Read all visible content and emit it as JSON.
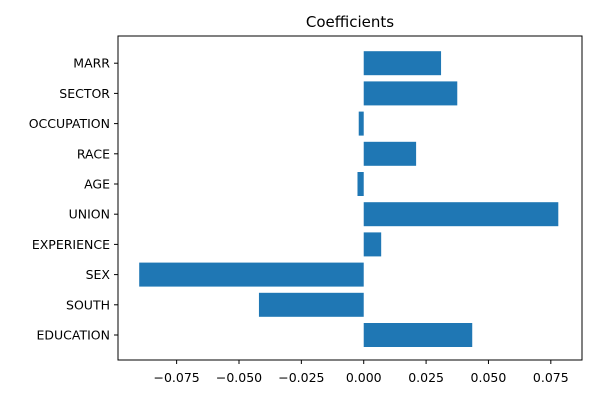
{
  "chart_data": {
    "type": "bar",
    "orientation": "horizontal",
    "title": "Coefficients",
    "xlabel": "",
    "ylabel": "",
    "categories": [
      "EDUCATION",
      "SOUTH",
      "SEX",
      "EXPERIENCE",
      "UNION",
      "AGE",
      "RACE",
      "OCCUPATION",
      "SECTOR",
      "MARR"
    ],
    "values": [
      0.0435,
      -0.042,
      -0.09,
      0.007,
      0.078,
      -0.0025,
      0.021,
      -0.002,
      0.0375,
      0.031
    ],
    "xlim": [
      -0.0985,
      0.0875
    ],
    "xticks": [
      -0.075,
      -0.05,
      -0.025,
      0.0,
      0.025,
      0.05,
      0.075
    ],
    "xtick_labels": [
      "−0.075",
      "−0.050",
      "−0.025",
      "0.000",
      "0.025",
      "0.050",
      "0.075"
    ],
    "bar_color": "#1f77b4",
    "grid": false,
    "legend": "none"
  }
}
